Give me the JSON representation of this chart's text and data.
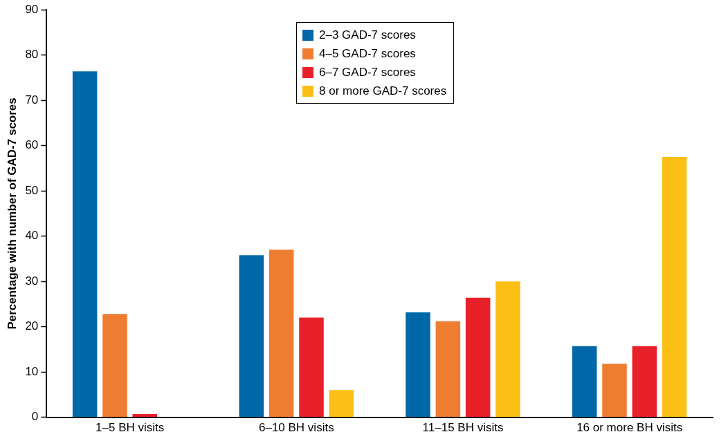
{
  "chart_data": {
    "type": "bar",
    "ylabel": "Percentage with number of GAD-7 scores",
    "categories": [
      "1–5 BH visits",
      "6–10 BH visits",
      "11–15 BH visits",
      "16 or more BH visits"
    ],
    "series": [
      {
        "name": "2–3 GAD-7 scores",
        "color": "#0068a8",
        "values": [
          76.4,
          35.8,
          23.2,
          15.7
        ]
      },
      {
        "name": "4–5 GAD-7 scores",
        "color": "#ee7d31",
        "values": [
          22.8,
          37.0,
          21.2,
          11.8
        ]
      },
      {
        "name": "6–7 GAD-7 scores",
        "color": "#e8202a",
        "values": [
          0.7,
          22.0,
          26.4,
          15.7
        ]
      },
      {
        "name": "8 or more GAD-7 scores",
        "color": "#fbbf15",
        "values": [
          null,
          6.0,
          30.0,
          57.5
        ]
      }
    ],
    "ylim": [
      0,
      90
    ],
    "yticks": [
      0,
      10,
      20,
      30,
      40,
      50,
      60,
      70,
      80,
      90
    ],
    "grid": false,
    "legend": "top"
  }
}
